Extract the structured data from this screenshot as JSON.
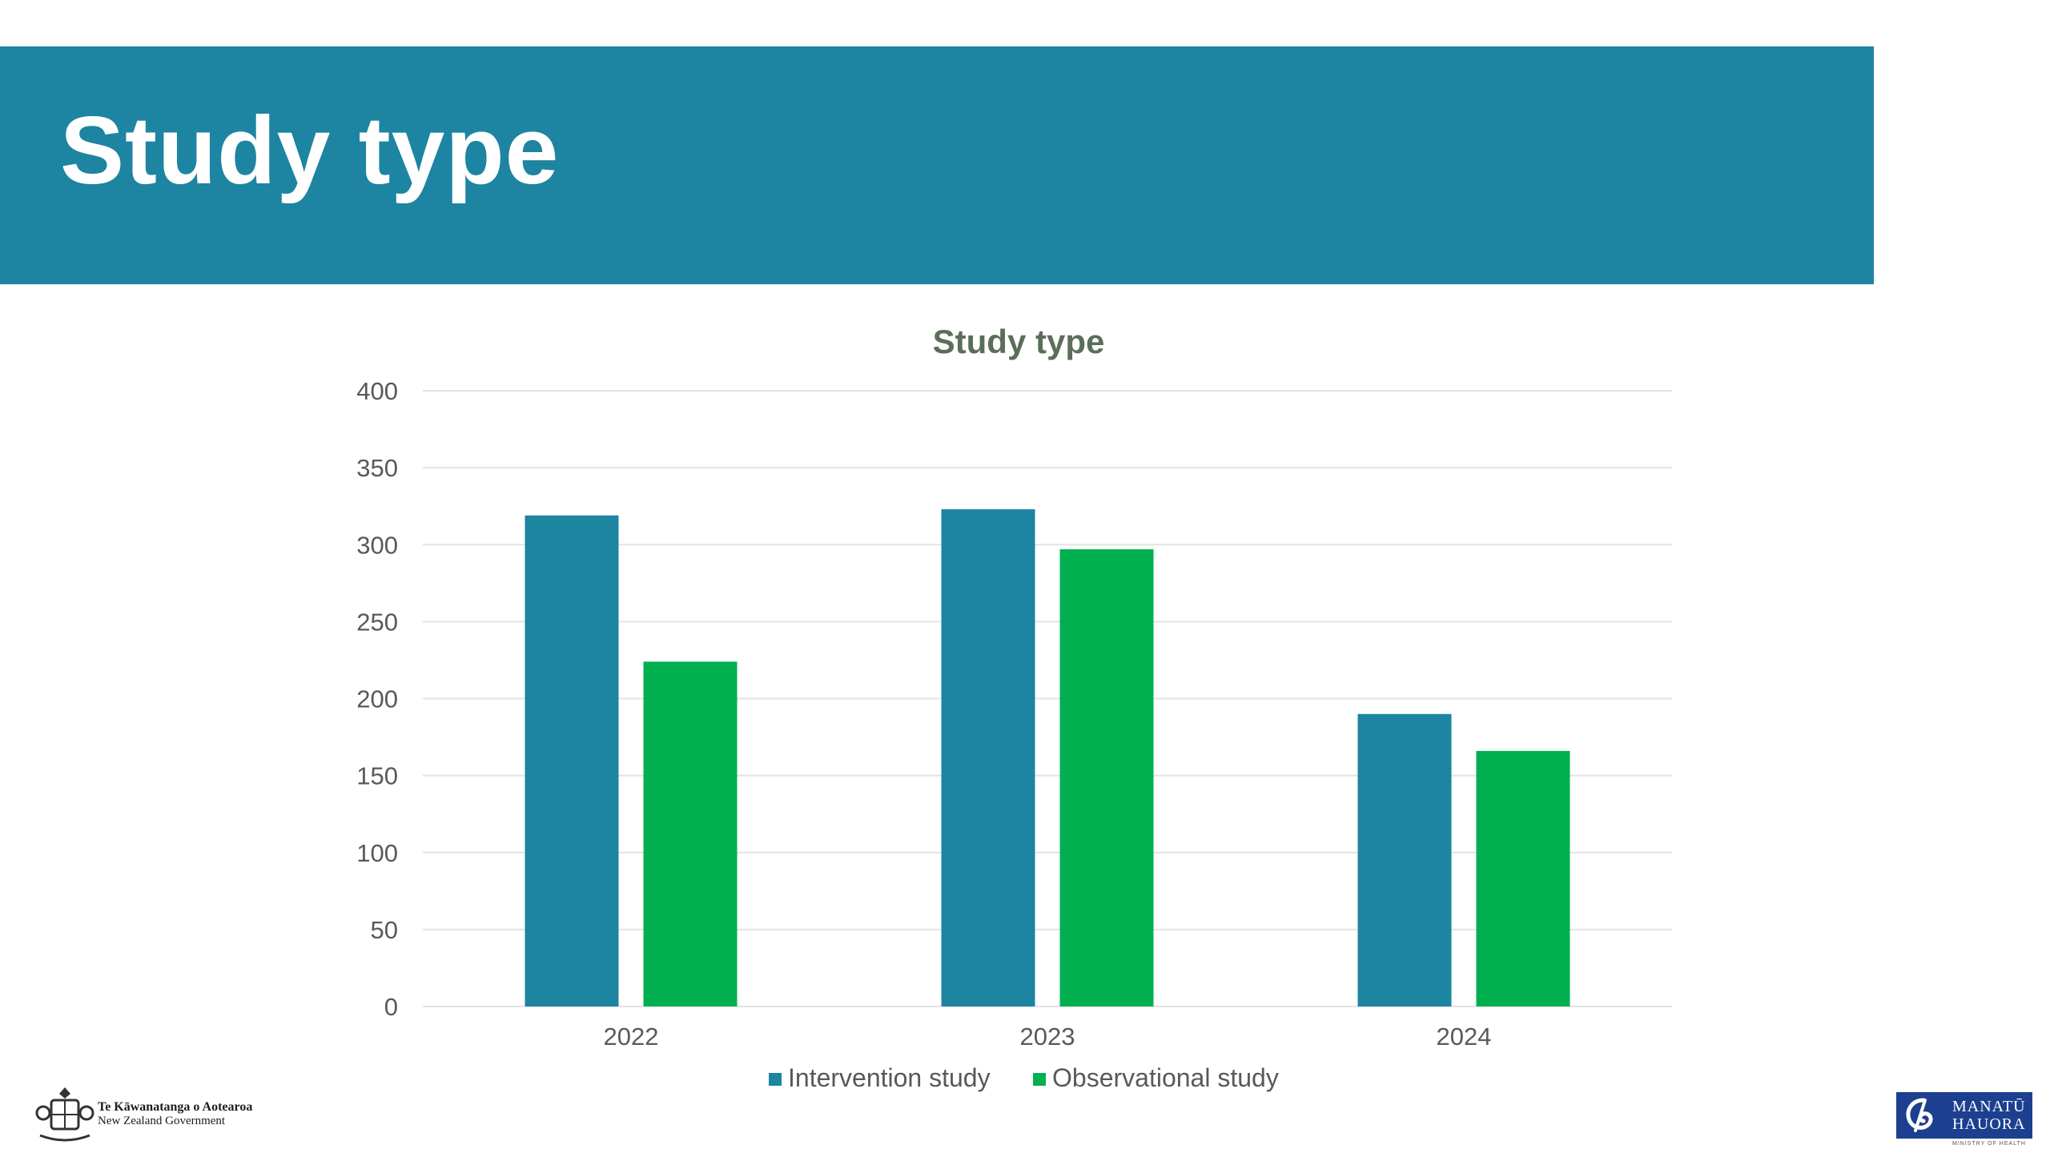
{
  "slide": {
    "title": "Study type"
  },
  "footer": {
    "gov_line1": "Te Kāwanatanga o Aotearoa",
    "gov_line2": "New Zealand Government",
    "moh_line1": "MANATŪ",
    "moh_line2": "HAUORA",
    "moh_sub": "MINISTRY OF HEALTH"
  },
  "colors": {
    "banner": "#1d84a2",
    "intervention": "#1d84a2",
    "observational": "#00b050",
    "chart_title": "#5a6e5a",
    "axis_text": "#595959",
    "gridline": "#e3e3e3"
  },
  "chart_data": {
    "type": "bar",
    "title": "Study type",
    "xlabel": "",
    "ylabel": "",
    "categories": [
      "2022",
      "2023",
      "2024"
    ],
    "series": [
      {
        "name": "Intervention study",
        "values": [
          319,
          323,
          190
        ]
      },
      {
        "name": "Observational study",
        "values": [
          224,
          297,
          166
        ]
      }
    ],
    "ylim": [
      0,
      400
    ],
    "yticks": [
      0,
      50,
      100,
      150,
      200,
      250,
      300,
      350,
      400
    ],
    "grid": true,
    "legend": "bottom"
  }
}
